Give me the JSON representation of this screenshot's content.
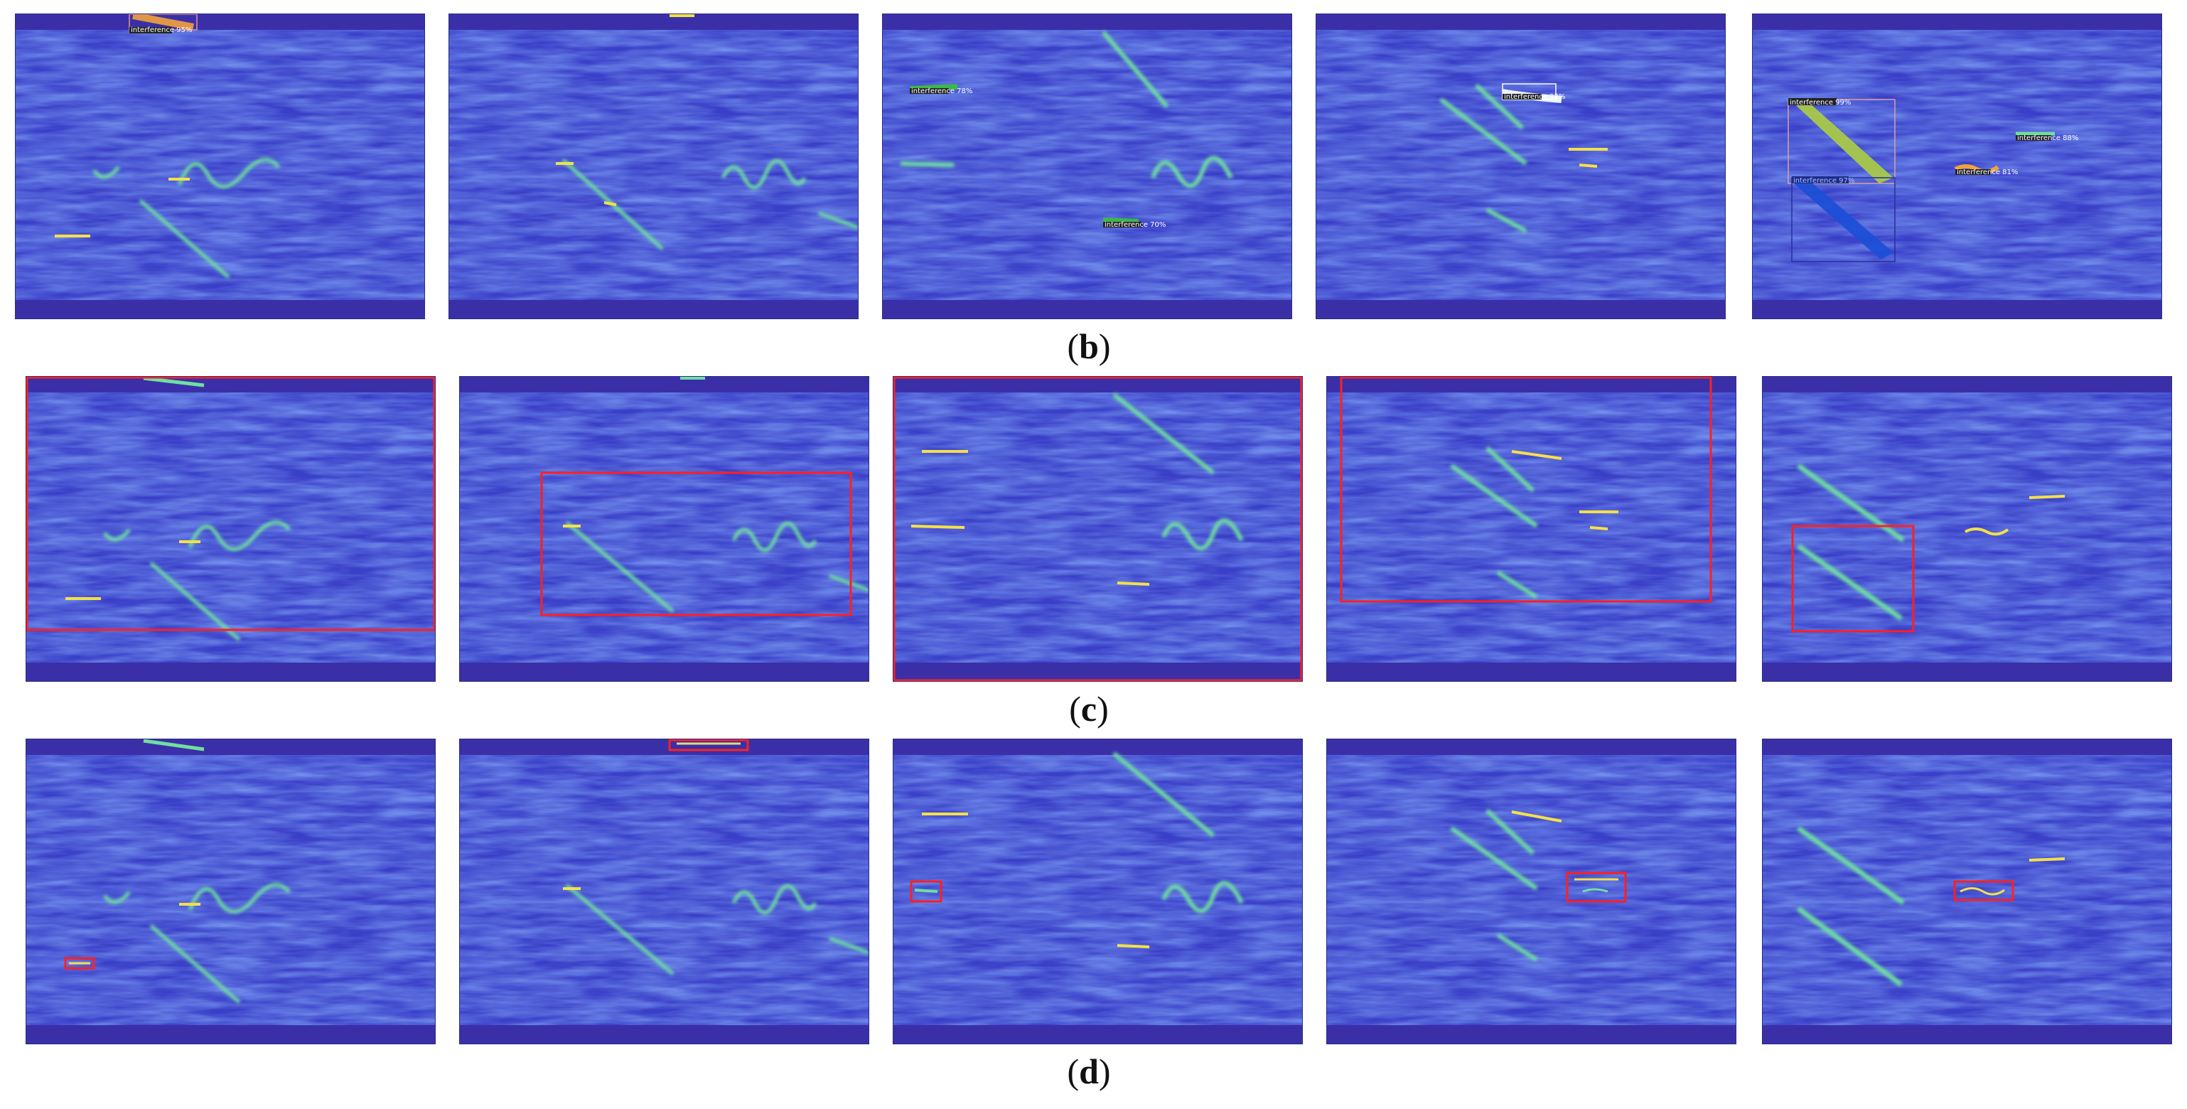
{
  "captions": {
    "row_b": {
      "open": "(",
      "letter": "b",
      "close": ")"
    },
    "row_c": {
      "open": "(",
      "letter": "c",
      "close": ")"
    },
    "row_d": {
      "open": "(",
      "letter": "d",
      "close": ")"
    }
  },
  "detection_labels": {
    "b1": "interference 95%",
    "b3a": "interference 78%",
    "b3b": "interference 70%",
    "b4": "interference 92%",
    "b5a": "interference 99%",
    "b5b": "interference 97%",
    "b5c": "interference 88%",
    "b5d": "interference 81%"
  },
  "colors": {
    "background": "#3a3fc8",
    "noise_light": "#4f86e8",
    "band_dark": "#3b2fa8",
    "signal_green": "#7fe08a",
    "signal_yellow": "#f4e04a",
    "detection_box": "#ff2020",
    "mask_orange": "#f2a23c",
    "mask_green": "#a8c84a",
    "mask_blue": "#1c4fd6",
    "mask_white": "#eaf4ff"
  }
}
